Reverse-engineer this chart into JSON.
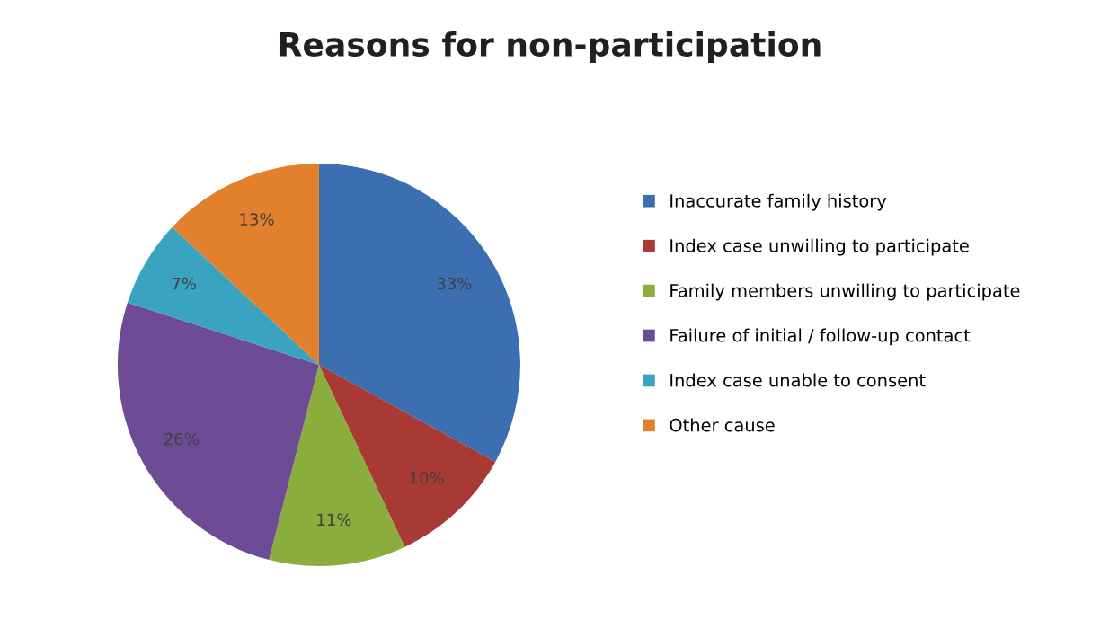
{
  "chart_data": {
    "type": "pie",
    "title": "Reasons for non-participation",
    "categories": [
      "Inaccurate family history",
      "Index case unwilling to participate",
      "Family members unwilling to participate",
      "Failure of initial / follow-up contact",
      "Index case unable to consent",
      "Other cause"
    ],
    "values": [
      33,
      10,
      11,
      26,
      7,
      13
    ],
    "value_labels": [
      "33%",
      "10%",
      "11%",
      "26%",
      "7%",
      "13%"
    ],
    "colors": [
      "#3b6fb1",
      "#a83935",
      "#8aad3c",
      "#6d4b95",
      "#3aa3bf",
      "#e3802e"
    ],
    "legend": "right"
  }
}
